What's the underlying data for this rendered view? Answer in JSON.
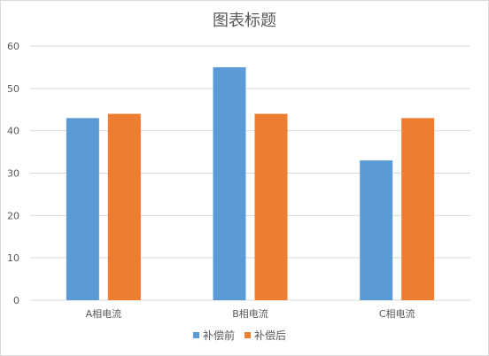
{
  "chart_data": {
    "type": "bar",
    "title": "图表标题",
    "categories": [
      "A相电流",
      "B相电流",
      "C相电流"
    ],
    "series": [
      {
        "name": "补偿前",
        "values": [
          43,
          55,
          33
        ],
        "color": "#5b9bd5"
      },
      {
        "name": "补偿后",
        "values": [
          44,
          44,
          43
        ],
        "color": "#ed7d31"
      }
    ],
    "ylim": [
      0,
      60
    ],
    "yticks": [
      0,
      10,
      20,
      30,
      40,
      50,
      60
    ],
    "xlabel": "",
    "ylabel": "",
    "grid": true,
    "legend_position": "bottom"
  }
}
